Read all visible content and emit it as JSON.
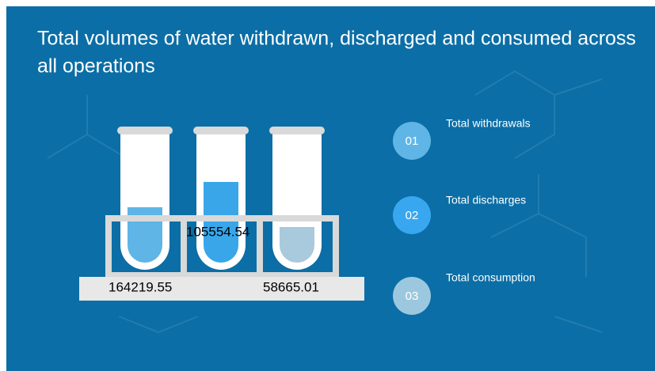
{
  "title": "Total volumes of water withdrawn, discharged and consumed across all operations",
  "items": [
    {
      "number": "01",
      "label": "Total withdrawals",
      "value": 164219.55
    },
    {
      "number": "02",
      "label": "Total discharges",
      "value": 105554.54
    },
    {
      "number": "03",
      "label": "Total consumption",
      "value": 58665.01
    }
  ]
}
